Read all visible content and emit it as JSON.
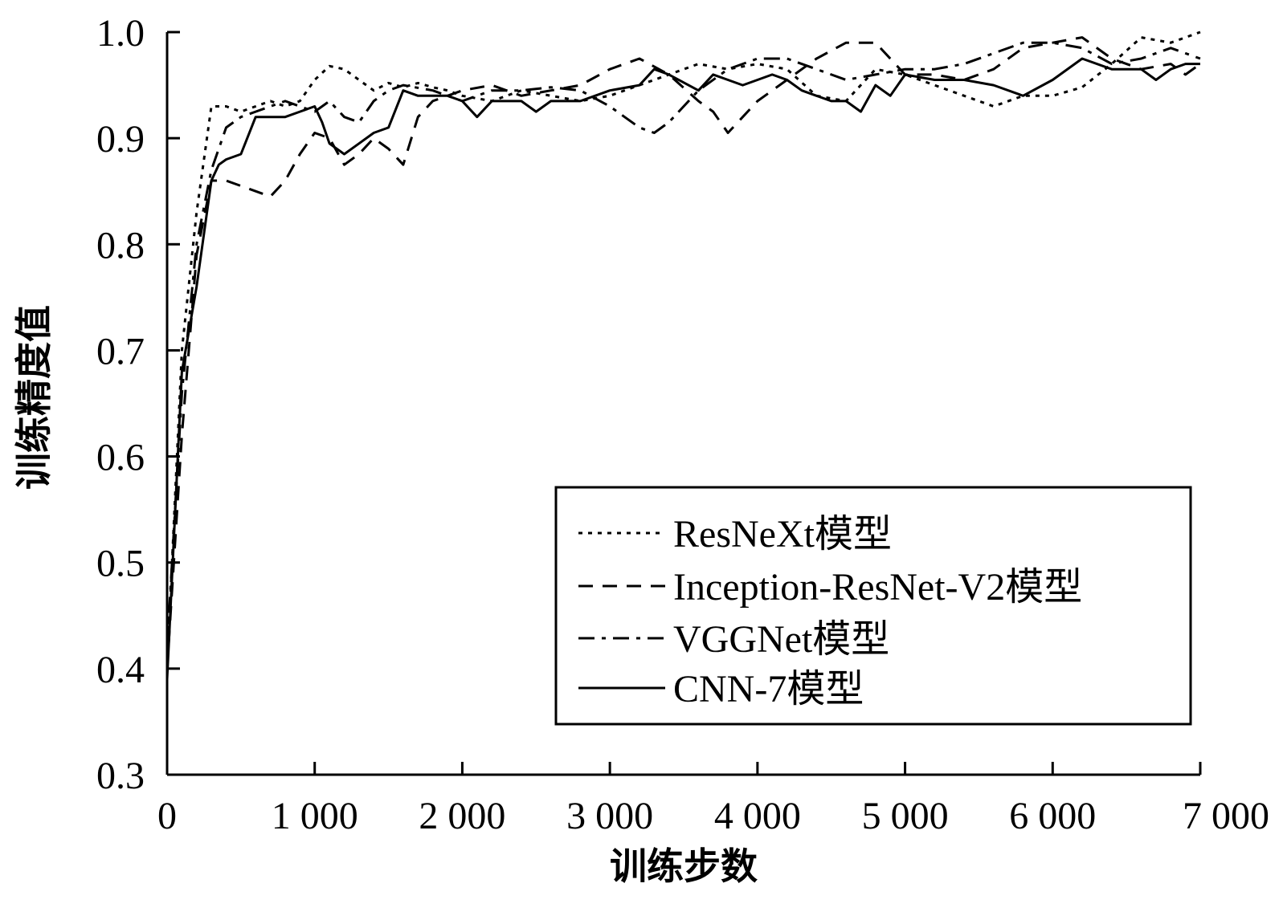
{
  "chart_data": {
    "type": "line",
    "title": "",
    "xlabel": "训练步数",
    "ylabel": "训练精度值",
    "xlim": [
      0,
      7000
    ],
    "ylim": [
      0.3,
      1.0
    ],
    "x_ticks": [
      0,
      1000,
      2000,
      3000,
      4000,
      5000,
      6000,
      7000
    ],
    "x_tick_labels": [
      "0",
      "1 000",
      "2 000",
      "3 000",
      "4 000",
      "5 000",
      "6 000",
      "7 000"
    ],
    "y_ticks": [
      0.3,
      0.4,
      0.5,
      0.6,
      0.7,
      0.8,
      0.9,
      1.0
    ],
    "y_tick_labels": [
      "0.3",
      "0.4",
      "0.5",
      "0.6",
      "0.7",
      "0.8",
      "0.9",
      "1.0"
    ],
    "grid": false,
    "legend_position": "bottom-right",
    "series": [
      {
        "name": "ResNeXt模型",
        "dash": "dotted",
        "x": [
          0,
          100,
          200,
          300,
          400,
          500,
          600,
          700,
          800,
          900,
          1000,
          1100,
          1200,
          1300,
          1400,
          1500,
          1600,
          1700,
          1800,
          1900,
          2000,
          2200,
          2400,
          2600,
          2800,
          3000,
          3200,
          3400,
          3600,
          3800,
          4000,
          4200,
          4400,
          4600,
          4800,
          5000,
          5200,
          5400,
          5600,
          5800,
          6000,
          6200,
          6400,
          6600,
          6800,
          7000
        ],
        "y": [
          0.4,
          0.7,
          0.83,
          0.93,
          0.93,
          0.925,
          0.93,
          0.935,
          0.93,
          0.935,
          0.955,
          0.968,
          0.965,
          0.955,
          0.945,
          0.952,
          0.948,
          0.952,
          0.948,
          0.945,
          0.94,
          0.935,
          0.945,
          0.94,
          0.935,
          0.94,
          0.95,
          0.96,
          0.97,
          0.965,
          0.97,
          0.965,
          0.94,
          0.935,
          0.965,
          0.96,
          0.95,
          0.94,
          0.93,
          0.94,
          0.94,
          0.948,
          0.97,
          0.995,
          0.99,
          1.0
        ]
      },
      {
        "name": "Inception-ResNet-V2模型",
        "dash": "dashed",
        "x": [
          0,
          100,
          200,
          300,
          400,
          500,
          600,
          700,
          800,
          900,
          1000,
          1100,
          1200,
          1300,
          1400,
          1500,
          1600,
          1700,
          1800,
          1900,
          2000,
          2200,
          2400,
          2600,
          2800,
          3000,
          3200,
          3400,
          3600,
          3700,
          3800,
          3900,
          4000,
          4200,
          4400,
          4600,
          4800,
          5000,
          5200,
          5400,
          5600,
          5800,
          6000,
          6200,
          6400,
          6600,
          6800,
          6900,
          7000
        ],
        "y": [
          0.4,
          0.62,
          0.79,
          0.86,
          0.86,
          0.855,
          0.85,
          0.845,
          0.86,
          0.885,
          0.905,
          0.9,
          0.875,
          0.885,
          0.9,
          0.89,
          0.875,
          0.92,
          0.935,
          0.94,
          0.945,
          0.95,
          0.94,
          0.945,
          0.95,
          0.965,
          0.975,
          0.96,
          0.935,
          0.925,
          0.905,
          0.92,
          0.935,
          0.955,
          0.975,
          0.99,
          0.99,
          0.96,
          0.96,
          0.955,
          0.965,
          0.985,
          0.99,
          0.995,
          0.975,
          0.965,
          0.97,
          0.96,
          0.97
        ]
      },
      {
        "name": "VGGNet模型",
        "dash": "dash-dot",
        "x": [
          0,
          100,
          200,
          300,
          400,
          500,
          600,
          700,
          800,
          900,
          1000,
          1100,
          1200,
          1300,
          1400,
          1500,
          1600,
          1800,
          2000,
          2200,
          2400,
          2600,
          2800,
          3000,
          3200,
          3300,
          3400,
          3600,
          3800,
          4000,
          4200,
          4400,
          4600,
          4800,
          5000,
          5200,
          5400,
          5600,
          5800,
          6000,
          6200,
          6400,
          6600,
          6800,
          7000
        ],
        "y": [
          0.42,
          0.66,
          0.8,
          0.87,
          0.91,
          0.92,
          0.925,
          0.93,
          0.935,
          0.93,
          0.925,
          0.935,
          0.92,
          0.915,
          0.935,
          0.945,
          0.95,
          0.945,
          0.935,
          0.945,
          0.945,
          0.948,
          0.945,
          0.93,
          0.91,
          0.905,
          0.915,
          0.945,
          0.965,
          0.975,
          0.975,
          0.965,
          0.955,
          0.96,
          0.965,
          0.965,
          0.97,
          0.98,
          0.99,
          0.99,
          0.985,
          0.97,
          0.975,
          0.985,
          0.975
        ]
      },
      {
        "name": "CNN-7模型",
        "dash": "solid",
        "x": [
          0,
          100,
          200,
          300,
          350,
          400,
          500,
          600,
          700,
          800,
          900,
          1000,
          1050,
          1100,
          1200,
          1300,
          1400,
          1500,
          1600,
          1700,
          1800,
          1900,
          2000,
          2100,
          2200,
          2400,
          2500,
          2600,
          2800,
          3000,
          3200,
          3300,
          3400,
          3600,
          3700,
          3800,
          3900,
          4000,
          4100,
          4200,
          4300,
          4400,
          4500,
          4600,
          4700,
          4800,
          4900,
          5000,
          5200,
          5400,
          5600,
          5800,
          6000,
          6200,
          6400,
          6600,
          6700,
          6800,
          6900,
          7000
        ],
        "y": [
          0.39,
          0.68,
          0.76,
          0.86,
          0.875,
          0.88,
          0.885,
          0.92,
          0.92,
          0.92,
          0.925,
          0.93,
          0.915,
          0.895,
          0.885,
          0.895,
          0.905,
          0.91,
          0.945,
          0.94,
          0.94,
          0.94,
          0.935,
          0.92,
          0.935,
          0.935,
          0.925,
          0.935,
          0.935,
          0.945,
          0.95,
          0.965,
          0.96,
          0.945,
          0.96,
          0.955,
          0.95,
          0.955,
          0.96,
          0.955,
          0.945,
          0.94,
          0.935,
          0.935,
          0.925,
          0.95,
          0.94,
          0.96,
          0.955,
          0.955,
          0.95,
          0.94,
          0.955,
          0.975,
          0.965,
          0.965,
          0.955,
          0.965,
          0.97,
          0.97
        ]
      }
    ]
  }
}
